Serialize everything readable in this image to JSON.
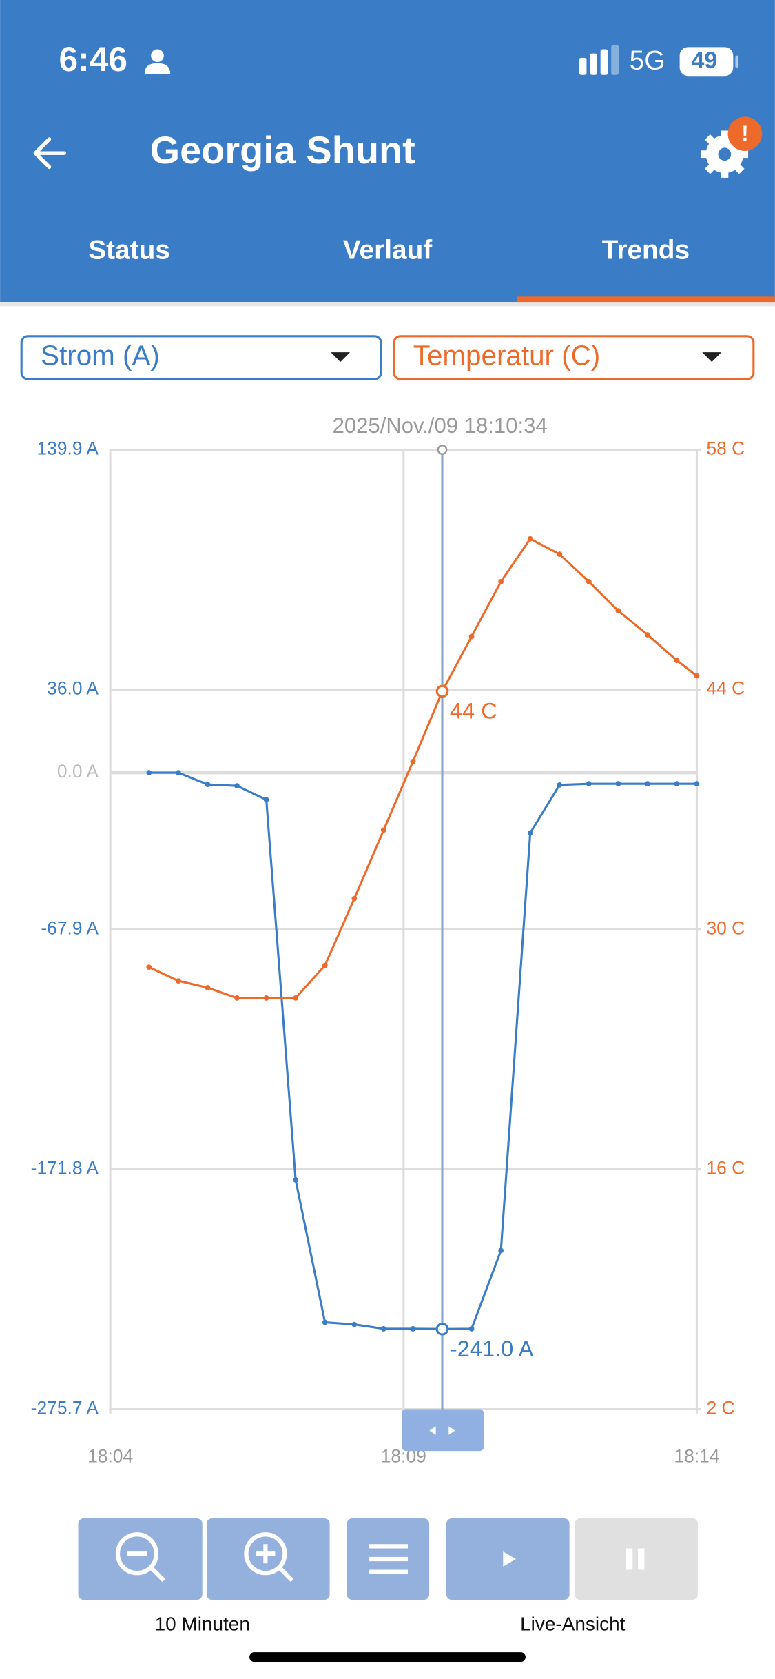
{
  "status_bar": {
    "time": "6:46",
    "network": "5G",
    "battery": "49"
  },
  "app_bar": {
    "title": "Georgia Shunt",
    "badge": "!"
  },
  "tabs": [
    "Status",
    "Verlauf",
    "Trends"
  ],
  "active_tab": 2,
  "chart_data": {
    "type": "line",
    "annotation": "2025/Nov./09 18:10:34",
    "x": [
      1084.66,
      1085.16,
      1085.66,
      1086.16,
      1086.66,
      1087.16,
      1087.66,
      1088.16,
      1088.66,
      1089.16,
      1089.66,
      1090.16,
      1090.66,
      1091.16,
      1091.66,
      1092.16,
      1092.66,
      1093.16,
      1093.66,
      1094
    ],
    "xlim": [
      1084,
      1094
    ],
    "xticks": [
      {
        "value": 1084,
        "label": "18:04"
      },
      {
        "value": 1089,
        "label": "18:09"
      },
      {
        "value": 1094,
        "label": "18:14"
      }
    ],
    "ylim": [
      -275.7,
      139.9
    ],
    "yticks": [
      {
        "value": 139.9,
        "label": "139.9 A"
      },
      {
        "value": 36.0,
        "label": "36.0 A"
      },
      {
        "value": 0.0,
        "label": "0.0 A"
      },
      {
        "value": -67.9,
        "label": "-67.9 A"
      },
      {
        "value": -171.8,
        "label": "-171.8 A"
      },
      {
        "value": -275.7,
        "label": "-275.7 A"
      }
    ],
    "y2lim": [
      2,
      58
    ],
    "y2ticks": [
      {
        "value": 58,
        "label": "58 C"
      },
      {
        "value": 44,
        "label": "44 C"
      },
      {
        "value": 30,
        "label": "30 C"
      },
      {
        "value": 16,
        "label": "16 C"
      },
      {
        "value": 2,
        "label": "2 C"
      }
    ],
    "grid": true,
    "series": [
      {
        "name": "Strom (A)",
        "color": "#3a7cc6",
        "values": [
          0.0,
          0.0,
          -5.1,
          -5.7,
          -11.7,
          -176.4,
          -238.1,
          -239.0,
          -240.9,
          -240.9,
          -241.0,
          -240.9,
          -207.0,
          -26.1,
          -5.3,
          -4.8,
          -4.8,
          -4.8,
          -4.8,
          -4.8
        ],
        "value_labels": [
          null,
          null,
          null,
          null,
          null,
          null,
          null,
          null,
          null,
          null,
          "-241.0 A",
          null,
          null,
          null,
          null,
          null,
          null,
          null,
          null,
          null
        ]
      },
      {
        "name": "Temperatur (C)",
        "color": "#ee6a2a",
        "axis": "y2",
        "values": [
          27.8,
          27.0,
          26.6,
          26.0,
          26.0,
          26.0,
          27.9,
          31.8,
          35.8,
          39.8,
          43.9,
          47.1,
          50.3,
          52.8,
          51.9,
          50.3,
          48.6,
          47.2,
          45.7,
          44.8
        ],
        "value_labels": [
          null,
          null,
          null,
          null,
          null,
          null,
          null,
          null,
          null,
          null,
          "44 C",
          null,
          null,
          null,
          null,
          null,
          null,
          null,
          null,
          null
        ]
      }
    ]
  },
  "controls": {
    "zoom_label": "10 Minuten",
    "live_label": "Live-Ansicht"
  }
}
